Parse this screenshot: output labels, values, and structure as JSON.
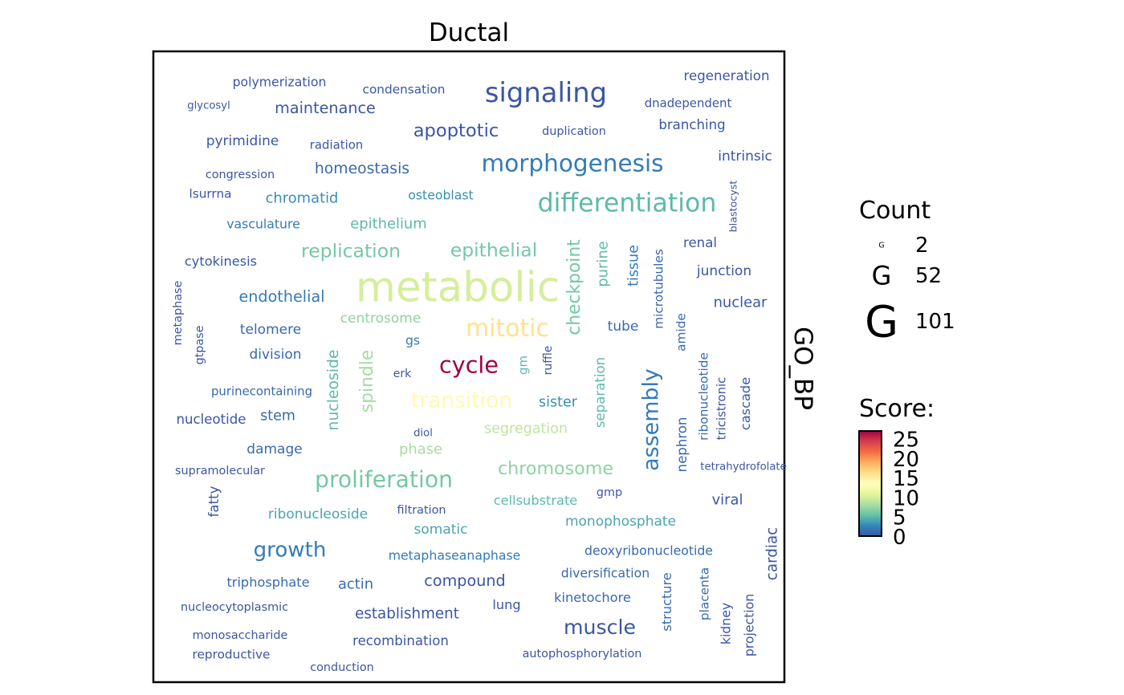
{
  "chart_data": {
    "type": "wordcloud",
    "title": "Ductal",
    "facet_label": "GO_BP",
    "size_legend": {
      "title": "Count",
      "glyph": "G",
      "values": [
        2,
        52,
        101
      ]
    },
    "color_legend": {
      "title": "Score:",
      "ticks": [
        0,
        5,
        10,
        15,
        20,
        25
      ],
      "range": [
        0,
        27
      ],
      "palette": [
        "#3b56a4",
        "#3288bd",
        "#66c2a5",
        "#abdda4",
        "#e6f598",
        "#ffffbf",
        "#fee08b",
        "#fdae61",
        "#f46d43",
        "#d53e4f",
        "#9e0142"
      ]
    },
    "words": [
      {
        "text": "signaling",
        "count": 60,
        "score": 0
      },
      {
        "text": "metabolic",
        "count": 101,
        "score": 10
      },
      {
        "text": "differentiation",
        "count": 55,
        "score": 5
      },
      {
        "text": "morphogenesis",
        "count": 50,
        "score": 2
      },
      {
        "text": "mitotic",
        "count": 51,
        "score": 16
      },
      {
        "text": "cycle",
        "count": 48,
        "score": 27
      },
      {
        "text": "transition",
        "count": 43,
        "score": 14
      },
      {
        "text": "proliferation",
        "count": 47,
        "score": 6
      },
      {
        "text": "assembly",
        "count": 44,
        "score": 2
      },
      {
        "text": "growth",
        "count": 42,
        "score": 2
      },
      {
        "text": "muscle",
        "count": 40,
        "score": 0
      },
      {
        "text": "apoptotic",
        "count": 34,
        "score": 0
      },
      {
        "text": "replication",
        "count": 36,
        "score": 6
      },
      {
        "text": "epithelial",
        "count": 36,
        "score": 6
      },
      {
        "text": "chromosome",
        "count": 33,
        "score": 7
      },
      {
        "text": "spindle",
        "count": 32,
        "score": 8
      },
      {
        "text": "checkpoint",
        "count": 32,
        "score": 6
      },
      {
        "text": "maintenance",
        "count": 26,
        "score": 0
      },
      {
        "text": "homeostasis",
        "count": 25,
        "score": 1
      },
      {
        "text": "endothelial",
        "count": 26,
        "score": 2
      },
      {
        "text": "compound",
        "count": 26,
        "score": 0
      },
      {
        "text": "establishment",
        "count": 24,
        "score": 0
      },
      {
        "text": "nucleoside",
        "count": 25,
        "score": 5
      },
      {
        "text": "epithelium",
        "count": 23,
        "score": 5
      },
      {
        "text": "chromatid",
        "count": 23,
        "score": 3
      },
      {
        "text": "purine",
        "count": 23,
        "score": 5
      },
      {
        "text": "tissue",
        "count": 22,
        "score": 2
      },
      {
        "text": "telomere",
        "count": 21,
        "score": 1
      },
      {
        "text": "division",
        "count": 21,
        "score": 1
      },
      {
        "text": "centrosome",
        "count": 21,
        "score": 7
      },
      {
        "text": "segregation",
        "count": 22,
        "score": 9
      },
      {
        "text": "phase",
        "count": 23,
        "score": 8
      },
      {
        "text": "sister",
        "count": 22,
        "score": 3
      },
      {
        "text": "separation",
        "count": 20,
        "score": 5
      },
      {
        "text": "tube",
        "count": 21,
        "score": 1
      },
      {
        "text": "pyrimidine",
        "count": 21,
        "score": 0
      },
      {
        "text": "branching",
        "count": 20,
        "score": 0
      },
      {
        "text": "intrinsic",
        "count": 21,
        "score": 0
      },
      {
        "text": "junction",
        "count": 21,
        "score": 0
      },
      {
        "text": "nuclear",
        "count": 23,
        "score": 0
      },
      {
        "text": "renal",
        "count": 20,
        "score": 0
      },
      {
        "text": "regeneration",
        "count": 20,
        "score": 0
      },
      {
        "text": "cytokinesis",
        "count": 19,
        "score": 0
      },
      {
        "text": "nucleotide",
        "count": 20,
        "score": 0
      },
      {
        "text": "stem",
        "count": 22,
        "score": 1
      },
      {
        "text": "damage",
        "count": 21,
        "score": 1
      },
      {
        "text": "fatty",
        "count": 20,
        "score": 0
      },
      {
        "text": "ribonucleoside",
        "count": 21,
        "score": 4
      },
      {
        "text": "somatic",
        "count": 21,
        "score": 4
      },
      {
        "text": "monophosphate",
        "count": 21,
        "score": 4
      },
      {
        "text": "viral",
        "count": 23,
        "score": 0
      },
      {
        "text": "cardiac",
        "count": 24,
        "score": 0
      },
      {
        "text": "nephron",
        "count": 20,
        "score": 1
      },
      {
        "text": "microtubules",
        "count": 17,
        "score": 1
      },
      {
        "text": "amide",
        "count": 17,
        "score": 1
      },
      {
        "text": "ribonucleotide",
        "count": 17,
        "score": 1
      },
      {
        "text": "tricistronic",
        "count": 16,
        "score": 0
      },
      {
        "text": "cascade",
        "count": 19,
        "score": 0
      },
      {
        "text": "actin",
        "count": 23,
        "score": 1
      },
      {
        "text": "triphosphate",
        "count": 19,
        "score": 1
      },
      {
        "text": "recombination",
        "count": 20,
        "score": 0
      },
      {
        "text": "kinetochore",
        "count": 19,
        "score": 1
      },
      {
        "text": "diversification",
        "count": 18,
        "score": 1
      },
      {
        "text": "deoxyribonucleotide",
        "count": 18,
        "score": 1
      },
      {
        "text": "metaphaseanaphase",
        "count": 18,
        "score": 2
      },
      {
        "text": "cellsubstrate",
        "count": 19,
        "score": 5
      },
      {
        "text": "structure",
        "count": 19,
        "score": 1
      },
      {
        "text": "lung",
        "count": 19,
        "score": 0
      },
      {
        "text": "osteoblast",
        "count": 18,
        "score": 3
      },
      {
        "text": "vasculature",
        "count": 18,
        "score": 2
      },
      {
        "text": "polymerization",
        "count": 18,
        "score": 0
      },
      {
        "text": "condensation",
        "count": 17,
        "score": 0
      },
      {
        "text": "dnadependent",
        "count": 16,
        "score": 0
      },
      {
        "text": "radiation",
        "count": 16,
        "score": 0
      },
      {
        "text": "duplication",
        "count": 15,
        "score": 0
      },
      {
        "text": "congression",
        "count": 15,
        "score": 0
      },
      {
        "text": "lsurrna",
        "count": 17,
        "score": 0
      },
      {
        "text": "purinecontaining",
        "count": 16,
        "score": 1
      },
      {
        "text": "supramolecular",
        "count": 15,
        "score": 0
      },
      {
        "text": "filtration",
        "count": 15,
        "score": 0
      },
      {
        "text": "nucleocytoplasmic",
        "count": 15,
        "score": 0
      },
      {
        "text": "monosaccharide",
        "count": 15,
        "score": 0
      },
      {
        "text": "reproductive",
        "count": 17,
        "score": 0
      },
      {
        "text": "conduction",
        "count": 15,
        "score": 0
      },
      {
        "text": "autophosphorylation",
        "count": 15,
        "score": 0
      },
      {
        "text": "placenta",
        "count": 17,
        "score": 1
      },
      {
        "text": "kidney",
        "count": 18,
        "score": 0
      },
      {
        "text": "projection",
        "count": 18,
        "score": 0
      },
      {
        "text": "gs",
        "count": 18,
        "score": 2
      },
      {
        "text": "gm",
        "count": 16,
        "score": 5
      },
      {
        "text": "ruffle",
        "count": 14,
        "score": 0
      },
      {
        "text": "erk",
        "count": 14,
        "score": 0
      },
      {
        "text": "gmp",
        "count": 15,
        "score": 0
      },
      {
        "text": "diol",
        "count": 12,
        "score": 0
      },
      {
        "text": "metaphase",
        "count": 15,
        "score": 0
      },
      {
        "text": "gtpase",
        "count": 15,
        "score": 0
      },
      {
        "text": "glycosyl",
        "count": 12,
        "score": 0
      },
      {
        "text": "blastocyst",
        "count": 11,
        "score": 0
      },
      {
        "text": "tetrahydrofolate",
        "count": 12,
        "score": 0
      }
    ]
  }
}
